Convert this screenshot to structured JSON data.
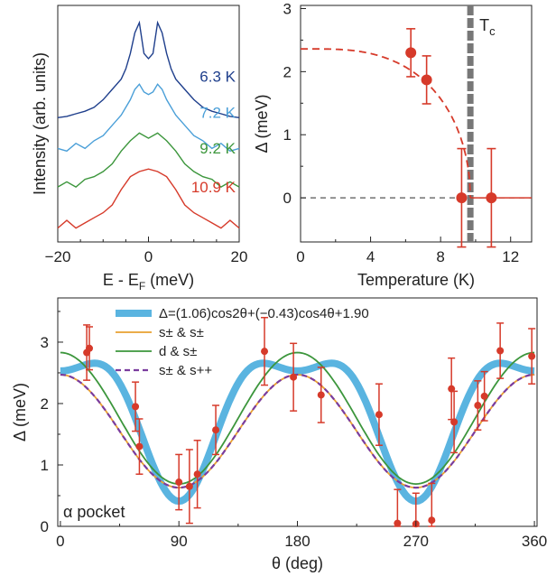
{
  "chart_data": [
    {
      "type": "line",
      "panel": "a",
      "xlabel": "E - E",
      "xlabel_sub": "F",
      "xlabel_unit": " (meV)",
      "ylabel": "Intensity (arb. units)",
      "xlim": [
        -20,
        20
      ],
      "xticks": [
        -20,
        0,
        20
      ],
      "series": [
        {
          "name": "6.3 K",
          "color": "#1f3f8c",
          "offset": 4.6,
          "x": [
            -20,
            -18,
            -16,
            -14,
            -12,
            -10,
            -8,
            -6,
            -5,
            -4,
            -3,
            -2,
            -1,
            0,
            1,
            2,
            3,
            4,
            5,
            6,
            8,
            10,
            12,
            14,
            16,
            18,
            20
          ],
          "y": [
            0.1,
            0.15,
            0.25,
            0.35,
            0.5,
            0.8,
            1.2,
            1.6,
            2.0,
            2.6,
            3.4,
            3.8,
            2.6,
            2.4,
            2.6,
            3.8,
            3.4,
            2.6,
            2.0,
            1.6,
            1.2,
            0.8,
            0.5,
            0.35,
            0.25,
            0.15,
            0.1
          ]
        },
        {
          "name": "7.2 K",
          "color": "#4a9fd8",
          "offset": 3.2,
          "x": [
            -20,
            -18,
            -16,
            -14,
            -12,
            -10,
            -8,
            -6,
            -4,
            -3,
            -2,
            -1,
            0,
            1,
            2,
            3,
            4,
            6,
            8,
            10,
            12,
            14,
            16,
            18,
            20
          ],
          "y": [
            0.3,
            0.2,
            0.5,
            0.3,
            0.6,
            0.8,
            1.2,
            1.6,
            2.2,
            2.6,
            2.8,
            2.5,
            2.4,
            2.5,
            2.8,
            2.6,
            2.2,
            1.6,
            1.2,
            0.8,
            0.6,
            0.3,
            0.5,
            0.2,
            0.3
          ]
        },
        {
          "name": "9.2 K",
          "color": "#3c963c",
          "offset": 1.8,
          "x": [
            -20,
            -18,
            -16,
            -14,
            -12,
            -10,
            -8,
            -6,
            -4,
            -2,
            0,
            2,
            4,
            6,
            8,
            10,
            12,
            14,
            16,
            18,
            20
          ],
          "y": [
            0.2,
            0.4,
            0.2,
            0.5,
            0.6,
            0.8,
            1.1,
            1.6,
            2.0,
            2.3,
            2.1,
            2.3,
            2.0,
            1.6,
            1.1,
            0.8,
            0.6,
            0.5,
            0.2,
            0.4,
            0.2
          ]
        },
        {
          "name": "10.9 K",
          "color": "#d63a2a",
          "offset": 0.3,
          "x": [
            -20,
            -18,
            -16,
            -14,
            -12,
            -10,
            -8,
            -6,
            -4,
            -2,
            0,
            2,
            4,
            6,
            8,
            10,
            12,
            14,
            16,
            18,
            20
          ],
          "y": [
            0.1,
            0.4,
            0.1,
            0.3,
            0.5,
            0.7,
            1.0,
            1.6,
            2.1,
            2.3,
            2.4,
            2.3,
            2.1,
            1.6,
            1.0,
            0.7,
            0.5,
            0.3,
            0.1,
            0.4,
            0.1
          ]
        }
      ]
    },
    {
      "type": "scatter",
      "panel": "b",
      "xlabel": "Temperature (K)",
      "ylabel": "Δ (meV)",
      "xlim": [
        0,
        13.2
      ],
      "ylim": [
        -0.7,
        3.05
      ],
      "xticks": [
        0,
        4,
        8,
        12
      ],
      "yticks": [
        0,
        1,
        2,
        3
      ],
      "tc": 9.7,
      "tc_label": "T",
      "tc_label_sub": "c",
      "points": [
        {
          "x": 6.3,
          "y": 2.3,
          "err_up": 0.38,
          "err_down": 0.38
        },
        {
          "x": 7.2,
          "y": 1.87,
          "err_up": 0.38,
          "err_down": 0.38
        },
        {
          "x": 9.2,
          "y": 0.0,
          "err_up": 0.78,
          "err_down": 0.78
        },
        {
          "x": 10.9,
          "y": 0.0,
          "err_up": 0.78,
          "err_down": 0.78
        }
      ],
      "fit": {
        "delta0": 2.36,
        "tc": 9.7,
        "color": "#d63a2a"
      }
    },
    {
      "type": "scatter",
      "panel": "c",
      "xlabel": "θ (deg)",
      "ylabel": "Δ (meV)",
      "xlim": [
        -2,
        362
      ],
      "ylim": [
        0,
        3.72
      ],
      "xticks": [
        0,
        90,
        180,
        270,
        360
      ],
      "yticks": [
        0,
        1,
        2,
        3
      ],
      "annotation": "α pocket",
      "legend_position": "top",
      "curves": [
        {
          "name": "Δ=(1.06)cos2θ+(−0.43)cos4θ+1.90",
          "color": "#5ab4e0",
          "a2": 1.06,
          "a4": -0.43,
          "c": 1.9,
          "style": "thick"
        },
        {
          "name": "s± & s±",
          "color": "#e8a030",
          "a2": 0.92,
          "a4": 0.0,
          "c": 1.55,
          "style": "thin"
        },
        {
          "name": "d & s±",
          "color": "#3c963c",
          "a2": 1.07,
          "a4": 0.0,
          "c": 1.76,
          "style": "thin"
        },
        {
          "name": "s± & s++",
          "color": "#7a3c9e",
          "a2": 0.92,
          "a4": 0.0,
          "c": 1.55,
          "style": "dashed"
        }
      ],
      "points": [
        {
          "x": 20,
          "y": 2.83,
          "err": 0.45
        },
        {
          "x": 22,
          "y": 2.9,
          "err": 0.35
        },
        {
          "x": 57,
          "y": 1.95,
          "err": 0.4
        },
        {
          "x": 60,
          "y": 1.3,
          "err": 0.45
        },
        {
          "x": 90,
          "y": 0.72,
          "err": 0.45
        },
        {
          "x": 98,
          "y": 0.65,
          "err": 0.6
        },
        {
          "x": 104,
          "y": 0.85,
          "err": 0.55
        },
        {
          "x": 118,
          "y": 1.57,
          "err": 0.4
        },
        {
          "x": 155,
          "y": 2.85,
          "err": 0.55
        },
        {
          "x": 177,
          "y": 2.43,
          "err": 0.55
        },
        {
          "x": 198,
          "y": 2.14,
          "err": 0.45
        },
        {
          "x": 242,
          "y": 1.82,
          "err": 0.5
        },
        {
          "x": 256,
          "y": 0.05,
          "err": 0.55
        },
        {
          "x": 270,
          "y": 0.04,
          "err": 0.5
        },
        {
          "x": 282,
          "y": 0.1,
          "err": 0.6
        },
        {
          "x": 297,
          "y": 2.24,
          "err": 0.5
        },
        {
          "x": 299,
          "y": 1.7,
          "err": 0.5
        },
        {
          "x": 317,
          "y": 1.97,
          "err": 0.4
        },
        {
          "x": 322,
          "y": 2.12,
          "err": 0.4
        },
        {
          "x": 334,
          "y": 2.86,
          "err": 0.45
        },
        {
          "x": 358,
          "y": 2.77,
          "err": 0.45
        }
      ],
      "point_color": "#d63a2a"
    }
  ]
}
